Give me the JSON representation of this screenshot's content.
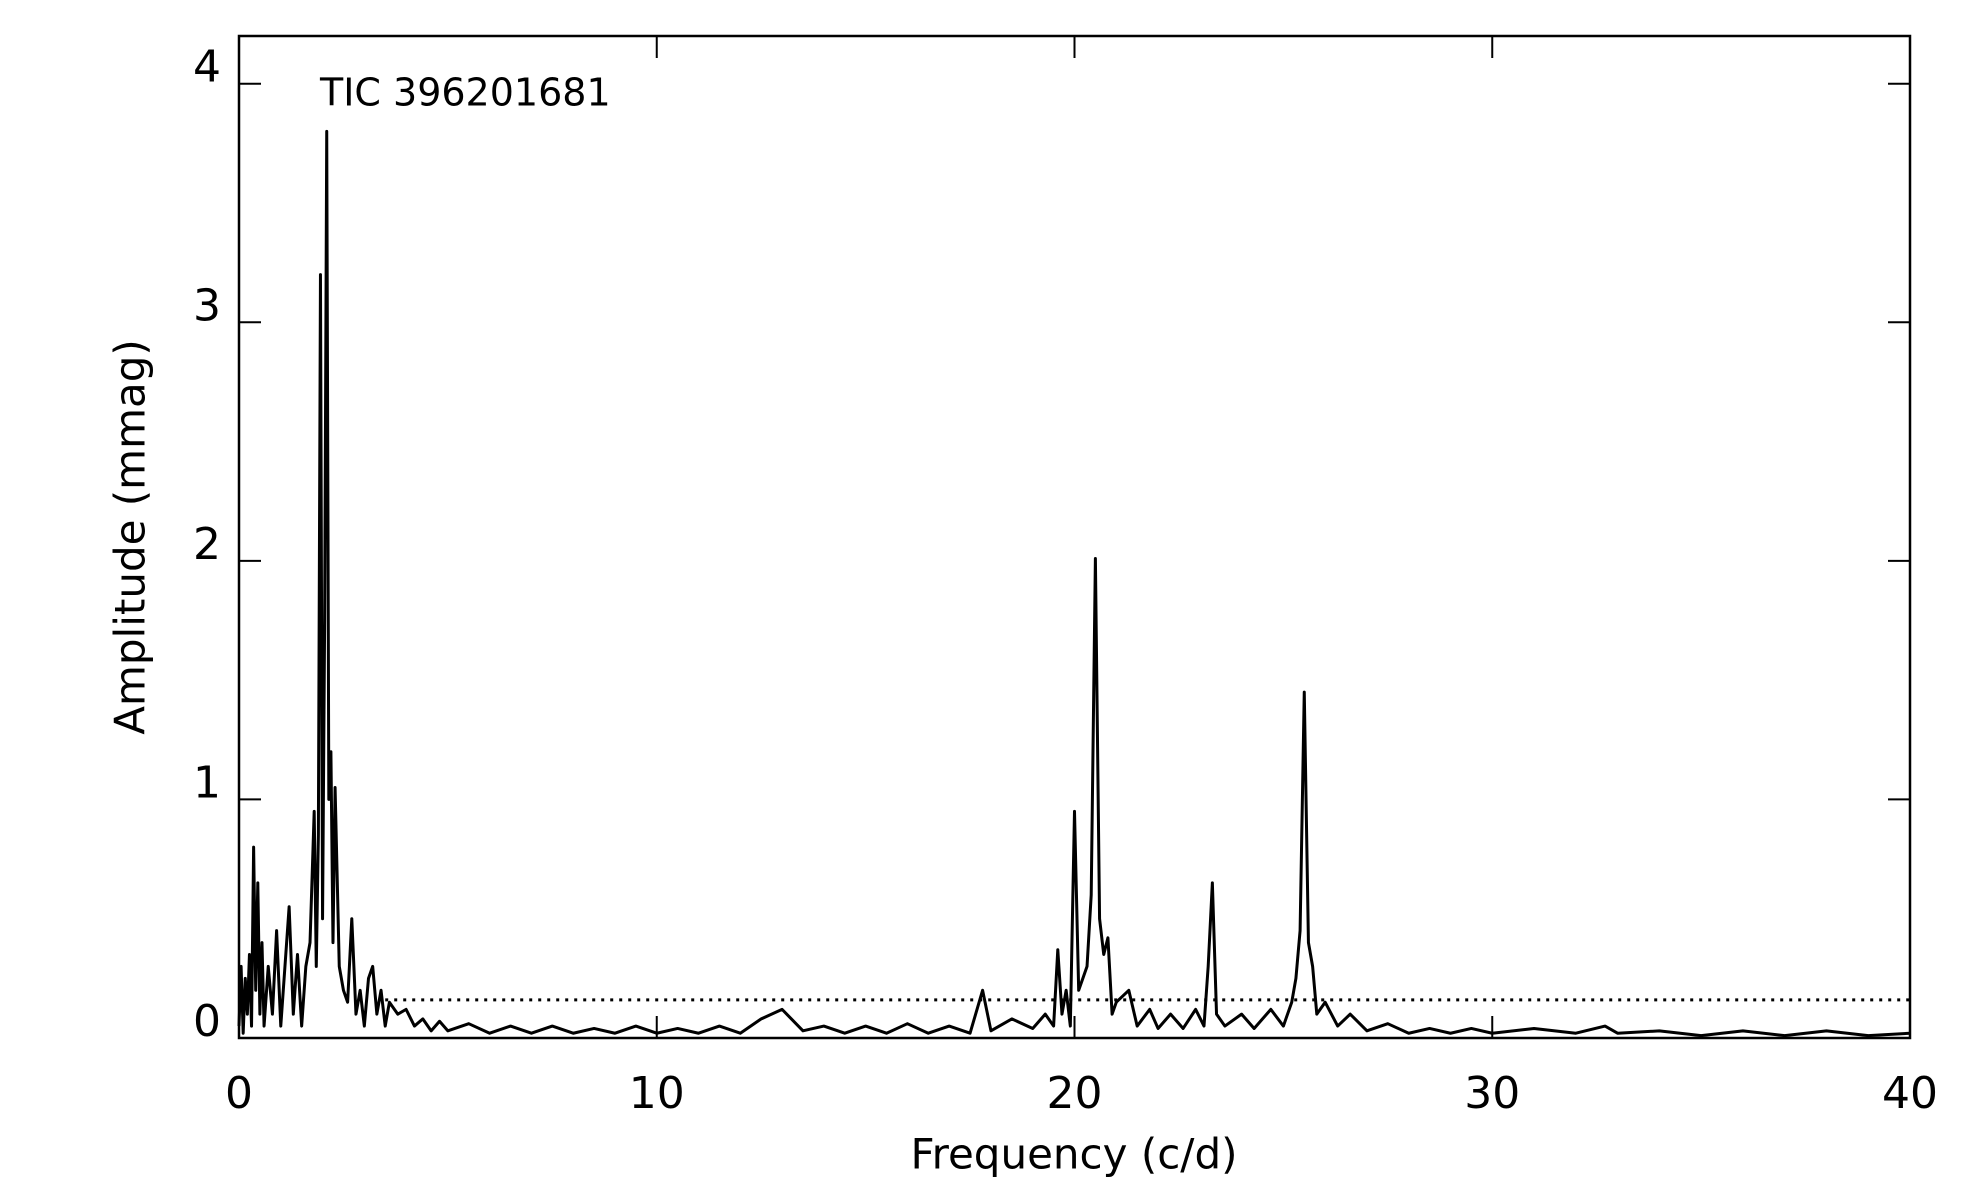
{
  "chart_data": {
    "type": "line",
    "annotation": "TIC 396201681",
    "xlabel": "Frequency (c/d)",
    "ylabel": "Amplitude (mmag)",
    "xlim": [
      0,
      40
    ],
    "ylim": [
      0,
      4.2
    ],
    "xticks": [
      0,
      10,
      20,
      30,
      40
    ],
    "yticks": [
      0,
      1,
      2,
      3,
      4
    ],
    "color": "#000000",
    "reference_line": {
      "y": 0.16,
      "x_start": 3.5,
      "style": "dotted"
    },
    "x": [
      0,
      0.05,
      0.1,
      0.15,
      0.2,
      0.25,
      0.3,
      0.35,
      0.4,
      0.45,
      0.5,
      0.55,
      0.6,
      0.7,
      0.8,
      0.9,
      1.0,
      1.1,
      1.2,
      1.3,
      1.4,
      1.5,
      1.6,
      1.7,
      1.8,
      1.85,
      1.9,
      1.95,
      2.0,
      2.05,
      2.1,
      2.15,
      2.2,
      2.25,
      2.3,
      2.4,
      2.5,
      2.6,
      2.7,
      2.8,
      2.9,
      3.0,
      3.1,
      3.2,
      3.3,
      3.4,
      3.5,
      3.6,
      3.8,
      4.0,
      4.2,
      4.4,
      4.6,
      4.8,
      5.0,
      5.5,
      6,
      6.5,
      7,
      7.5,
      8,
      8.5,
      9,
      9.5,
      10,
      10.5,
      11,
      11.5,
      12,
      12.5,
      13,
      13.5,
      14,
      14.5,
      15,
      15.5,
      16,
      16.5,
      17,
      17.5,
      17.8,
      18,
      18.5,
      19,
      19.3,
      19.5,
      19.6,
      19.7,
      19.8,
      19.9,
      20,
      20.1,
      20.2,
      20.3,
      20.4,
      20.5,
      20.6,
      20.7,
      20.8,
      20.9,
      21,
      21.3,
      21.5,
      21.8,
      22,
      22.3,
      22.6,
      22.9,
      23.1,
      23.2,
      23.3,
      23.4,
      23.6,
      24,
      24.3,
      24.7,
      25,
      25.2,
      25.3,
      25.4,
      25.5,
      25.6,
      25.7,
      25.8,
      26,
      26.3,
      26.6,
      27,
      27.5,
      28,
      28.5,
      29,
      29.5,
      30,
      31,
      32,
      32.7,
      33,
      34,
      35,
      36,
      37,
      38,
      39,
      40
    ],
    "values": [
      0.05,
      0.3,
      0.02,
      0.25,
      0.1,
      0.35,
      0.05,
      0.8,
      0.2,
      0.65,
      0.1,
      0.4,
      0.05,
      0.3,
      0.1,
      0.45,
      0.05,
      0.3,
      0.55,
      0.1,
      0.35,
      0.05,
      0.3,
      0.4,
      0.95,
      0.3,
      0.85,
      3.2,
      0.5,
      1.75,
      3.8,
      1.0,
      1.2,
      0.4,
      1.05,
      0.3,
      0.2,
      0.15,
      0.5,
      0.1,
      0.2,
      0.05,
      0.25,
      0.3,
      0.1,
      0.2,
      0.05,
      0.15,
      0.1,
      0.12,
      0.05,
      0.08,
      0.03,
      0.07,
      0.03,
      0.06,
      0.02,
      0.05,
      0.02,
      0.05,
      0.02,
      0.04,
      0.02,
      0.05,
      0.02,
      0.04,
      0.02,
      0.05,
      0.02,
      0.08,
      0.12,
      0.03,
      0.05,
      0.02,
      0.05,
      0.02,
      0.06,
      0.02,
      0.05,
      0.02,
      0.2,
      0.03,
      0.08,
      0.04,
      0.1,
      0.05,
      0.37,
      0.1,
      0.2,
      0.05,
      0.95,
      0.2,
      0.25,
      0.3,
      0.6,
      2.01,
      0.5,
      0.35,
      0.42,
      0.1,
      0.15,
      0.2,
      0.05,
      0.12,
      0.04,
      0.1,
      0.04,
      0.12,
      0.05,
      0.3,
      0.65,
      0.1,
      0.05,
      0.1,
      0.04,
      0.12,
      0.05,
      0.15,
      0.25,
      0.45,
      1.45,
      0.4,
      0.3,
      0.1,
      0.15,
      0.05,
      0.1,
      0.03,
      0.06,
      0.02,
      0.04,
      0.02,
      0.04,
      0.02,
      0.04,
      0.02,
      0.05,
      0.02,
      0.03,
      0.01,
      0.03,
      0.01,
      0.03,
      0.01,
      0.02
    ]
  }
}
